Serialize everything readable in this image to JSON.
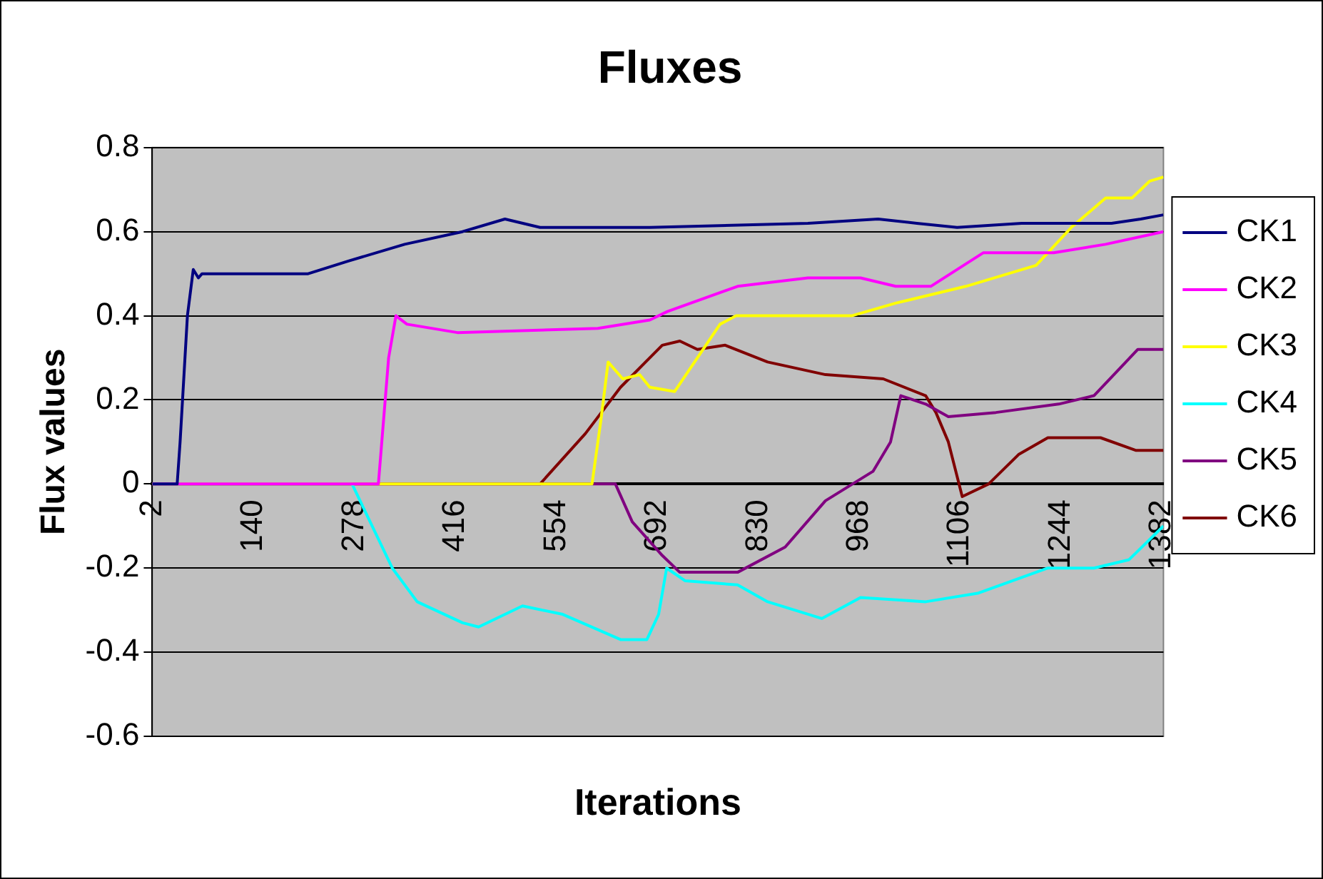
{
  "chart_data": {
    "type": "line",
    "title": "Fluxes",
    "xlabel": "Iterations",
    "ylabel": "Flux values",
    "xlim": [
      2,
      1384
    ],
    "xticks": [
      2,
      140,
      278,
      416,
      554,
      692,
      830,
      968,
      1106,
      1244,
      1382
    ],
    "ylim": [
      -0.6,
      0.8
    ],
    "yticks": [
      -0.6,
      -0.4,
      -0.2,
      0,
      0.2,
      0.4,
      0.6,
      0.8
    ],
    "grid": "y",
    "legend": "right",
    "marker": "none",
    "line_style": "solid",
    "series": [
      {
        "name": "CK1",
        "color": "#000080",
        "x": [
          2,
          36,
          40,
          50,
          58,
          65,
          70,
          100,
          215,
          270,
          347,
          426,
          484,
          532,
          682,
          898,
          994,
          1047,
          1102,
          1190,
          1313,
          1353,
          1384
        ],
        "values": [
          0,
          0,
          0.1,
          0.4,
          0.51,
          0.49,
          0.5,
          0.5,
          0.5,
          0.53,
          0.57,
          0.6,
          0.63,
          0.61,
          0.61,
          0.62,
          0.63,
          0.62,
          0.61,
          0.62,
          0.62,
          0.63,
          0.64
        ]
      },
      {
        "name": "CK2",
        "color": "#ff00ff",
        "x": [
          2,
          311,
          325,
          335,
          350,
          419,
          611,
          682,
          706,
          802,
          898,
          970,
          1018,
          1066,
          1138,
          1234,
          1305,
          1384
        ],
        "values": [
          0,
          0,
          0.3,
          0.4,
          0.38,
          0.36,
          0.37,
          0.39,
          0.41,
          0.47,
          0.49,
          0.49,
          0.47,
          0.47,
          0.55,
          0.55,
          0.57,
          0.6
        ]
      },
      {
        "name": "CK3",
        "color": "#ffff00",
        "x": [
          2,
          603,
          615,
          625,
          645,
          668,
          682,
          716,
          778,
          800,
          958,
          1018,
          1114,
          1210,
          1258,
          1305,
          1341,
          1365,
          1384
        ],
        "values": [
          0,
          0,
          0.15,
          0.29,
          0.25,
          0.26,
          0.23,
          0.22,
          0.38,
          0.4,
          0.4,
          0.43,
          0.47,
          0.52,
          0.61,
          0.68,
          0.68,
          0.72,
          0.73
        ]
      },
      {
        "name": "CK4",
        "color": "#00ffff",
        "x": [
          2,
          275,
          330,
          364,
          426,
          448,
          508,
          563,
          642,
          678,
          694,
          705,
          730,
          802,
          843,
          917,
          970,
          1059,
          1130,
          1226,
          1289,
          1337,
          1384
        ],
        "values": [
          0,
          0,
          -0.2,
          -0.28,
          -0.33,
          -0.34,
          -0.29,
          -0.31,
          -0.37,
          -0.37,
          -0.31,
          -0.2,
          -0.23,
          -0.24,
          -0.28,
          -0.32,
          -0.27,
          -0.28,
          -0.26,
          -0.2,
          -0.2,
          -0.18,
          -0.1
        ]
      },
      {
        "name": "CK5",
        "color": "#800080",
        "x": [
          2,
          635,
          658,
          699,
          723,
          802,
          867,
          922,
          987,
          1011,
          1025,
          1059,
          1090,
          1155,
          1241,
          1289,
          1349,
          1384
        ],
        "values": [
          0,
          0,
          -0.09,
          -0.17,
          -0.21,
          -0.21,
          -0.15,
          -0.04,
          0.03,
          0.1,
          0.21,
          0.19,
          0.16,
          0.17,
          0.19,
          0.21,
          0.32,
          0.32
        ]
      },
      {
        "name": "CK6",
        "color": "#800000",
        "x": [
          2,
          532,
          594,
          642,
          699,
          723,
          747,
          785,
          843,
          922,
          1001,
          1059,
          1073,
          1090,
          1109,
          1145,
          1186,
          1226,
          1298,
          1346,
          1384
        ],
        "values": [
          0,
          0,
          0.12,
          0.23,
          0.33,
          0.34,
          0.32,
          0.33,
          0.29,
          0.26,
          0.25,
          0.21,
          0.17,
          0.1,
          -0.03,
          0,
          0.07,
          0.11,
          0.11,
          0.08,
          0.08
        ]
      }
    ]
  }
}
